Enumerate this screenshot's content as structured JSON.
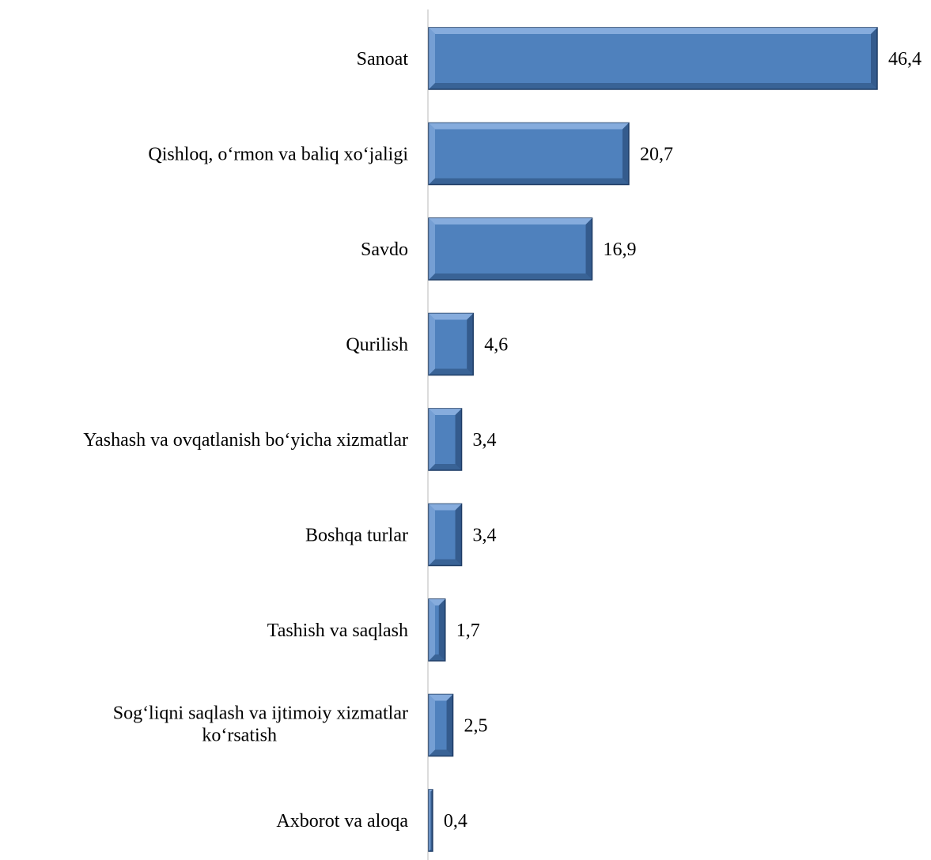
{
  "chart_data": {
    "type": "bar",
    "orientation": "horizontal",
    "categories": [
      [
        "Sanoat"
      ],
      [
        "Qishloq, o‘rmon  va baliq xo‘jaligi"
      ],
      [
        "Savdo"
      ],
      [
        "Qurilish"
      ],
      [
        "Yashash va ovqatlanish bo‘yicha xizmatlar"
      ],
      [
        "Boshqa turlar"
      ],
      [
        "Tashish va saqlash"
      ],
      [
        "Sog‘liqni saqlash va ijtimoiy xizmatlar",
        "ko‘rsatish"
      ],
      [
        "Axborot va aloqa"
      ]
    ],
    "values": [
      46.4,
      20.7,
      16.9,
      4.6,
      3.4,
      3.4,
      1.7,
      2.5,
      0.4
    ],
    "value_labels": [
      "46,4",
      "20,7",
      "16,9",
      "4,6",
      "3,4",
      "3,4",
      "1,7",
      "2,5",
      "0,4"
    ],
    "xlim": [
      0,
      46.4
    ],
    "title": "",
    "xlabel": "",
    "ylabel": "",
    "grid": false,
    "legend": "none",
    "colors": {
      "bar_fill": "#4f81bd",
      "bar_light": "#8fb4e3",
      "bar_dark": "#1f3d66",
      "axis": "#d0d0d0"
    }
  }
}
